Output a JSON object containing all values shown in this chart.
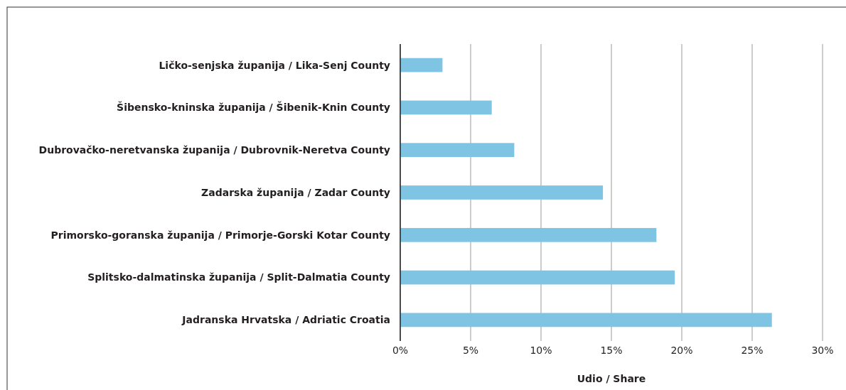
{
  "chart_data": {
    "type": "bar",
    "orientation": "horizontal",
    "xlabel": "Udio / Share",
    "categories": [
      "Ličko-senjska županija / Lika-Senj County",
      "Šibensko-kninska županija / Šibenik-Knin County",
      "Dubrovačko-neretvanska županija / Dubrovnik-Neretva County",
      "Zadarska županija / Zadar County",
      "Primorsko-goranska županija / Primorje-Gorski Kotar County",
      "Splitsko-dalmatinska županija / Split-Dalmatia County",
      "Jadranska Hrvatska / Adriatic Croatia"
    ],
    "values": [
      3.0,
      6.5,
      8.1,
      14.4,
      18.2,
      19.5,
      26.4
    ],
    "color": "#7fc4e2",
    "xlim": [
      0,
      30
    ],
    "xticks": [
      {
        "value": 0,
        "label": "0%"
      },
      {
        "value": 5,
        "label": "5%"
      },
      {
        "value": 10,
        "label": "10%"
      },
      {
        "value": 15,
        "label": "15%"
      },
      {
        "value": 20,
        "label": "20%"
      },
      {
        "value": 25,
        "label": "25%"
      },
      {
        "value": 30,
        "label": "30%"
      }
    ],
    "grid": "x"
  }
}
